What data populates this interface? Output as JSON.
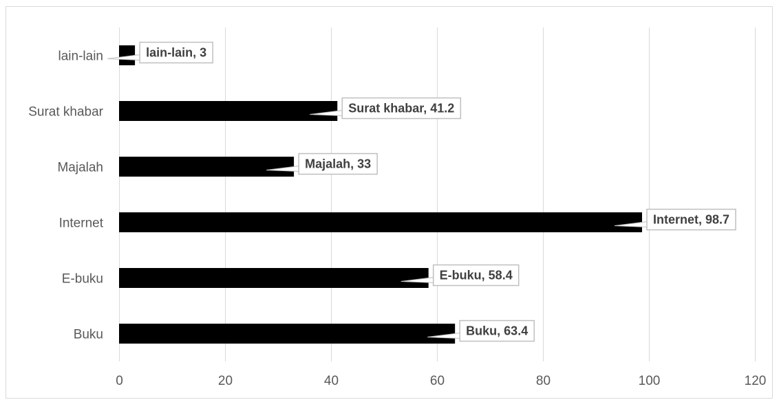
{
  "chart_data": {
    "type": "bar",
    "orientation": "horizontal",
    "categories": [
      "Buku",
      "E-buku",
      "Internet",
      "Majalah",
      "Surat khabar",
      "lain-lain"
    ],
    "values": [
      63.4,
      58.4,
      98.7,
      33,
      41.2,
      3
    ],
    "data_labels": [
      "Buku, 63.4",
      "E-buku, 58.4",
      "Internet, 98.7",
      "Majalah, 33",
      "Surat khabar, 41.2",
      "lain-lain, 3"
    ],
    "x_ticks": [
      "0",
      "20",
      "40",
      "60",
      "80",
      "100",
      "120"
    ],
    "xlim": [
      0,
      120
    ],
    "title": "",
    "xlabel": "",
    "ylabel": "",
    "grid": "vertical",
    "legend": "none",
    "colors": {
      "bar": "#000000",
      "grid": "#d9d9d9",
      "label_border": "#bfbfbf",
      "text": "#595959"
    }
  }
}
